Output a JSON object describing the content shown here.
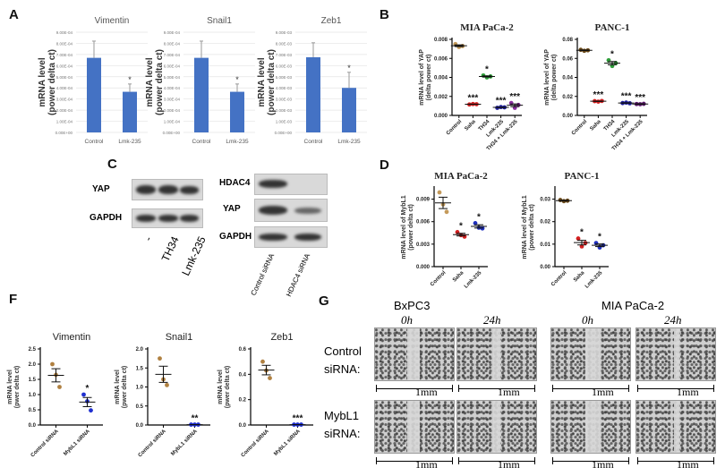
{
  "panels": {
    "A": "A",
    "B": "B",
    "C": "C",
    "D": "D",
    "F": "F",
    "G": "G"
  },
  "chart_data": [
    {
      "id": "A-vimentin",
      "type": "bar",
      "title": "Vimentin",
      "ylabel": [
        "mRNA level",
        "(power delta ct)"
      ],
      "categories": [
        "Control",
        "Lmk-235"
      ],
      "values": [
        0.00067,
        0.000365
      ],
      "errors": [
        0.00015,
        7e-05
      ],
      "annotations": [
        "",
        "*"
      ],
      "ylim": [
        0,
        0.0009
      ],
      "ytick_values": [
        0,
        0.0001,
        0.0002,
        0.0003,
        0.0004,
        0.0005,
        0.0006,
        0.0007,
        0.0008,
        0.0009
      ],
      "yticks": [
        "0.00E+00",
        "1.00E-04",
        "2.00E-04",
        "3.00E-04",
        "4.00E-04",
        "5.00E-04",
        "6.00E-04",
        "7.00E-04",
        "8.00E-04",
        "9.00E-04"
      ],
      "grid": true,
      "color": "#4472c4"
    },
    {
      "id": "A-snail1",
      "type": "bar",
      "title": "Snail1",
      "ylabel": [
        "mRNA level",
        "(power delta ct)"
      ],
      "categories": [
        "Control",
        "Lmk-235"
      ],
      "values": [
        0.00067,
        0.000365
      ],
      "errors": [
        0.00015,
        7e-05
      ],
      "annotations": [
        "",
        "*"
      ],
      "ylim": [
        0,
        0.0009
      ],
      "ytick_values": [
        0,
        0.0001,
        0.0002,
        0.0003,
        0.0004,
        0.0005,
        0.0006,
        0.0007,
        0.0008,
        0.0009
      ],
      "yticks": [
        "0.00E+00",
        "1.00E-04",
        "2.00E-04",
        "3.00E-04",
        "4.00E-04",
        "5.00E-04",
        "6.00E-04",
        "7.00E-04",
        "8.00E-04",
        "9.00E-04"
      ],
      "grid": true,
      "color": "#4472c4"
    },
    {
      "id": "A-zeb1",
      "type": "bar",
      "title": "Zeb1",
      "ylabel": [
        "mRNA level",
        "(power delta ct)"
      ],
      "categories": [
        "Control",
        "Lmk-235"
      ],
      "values": [
        0.00675,
        0.004
      ],
      "errors": [
        0.0013,
        0.0014
      ],
      "annotations": [
        "",
        "*"
      ],
      "ylim": [
        0,
        0.009
      ],
      "ytick_values": [
        0,
        0.001,
        0.002,
        0.003,
        0.004,
        0.005,
        0.006,
        0.007,
        0.008,
        0.009
      ],
      "yticks": [
        "0.00E+00",
        "1.00E-03",
        "2.00E-03",
        "3.00E-03",
        "4.00E-03",
        "5.00E-03",
        "6.00E-03",
        "7.00E-03",
        "8.00E-03",
        "9.00E-03"
      ],
      "grid": true,
      "color": "#4472c4"
    },
    {
      "id": "B-mia",
      "type": "scatter",
      "title": "MIA PaCa-2",
      "ylabel": [
        "mRNA level of YAP",
        "(delta power ct)"
      ],
      "categories": [
        "Control",
        "Saha",
        "TH34",
        "Lmk-235",
        "TH34 + Lmk-235"
      ],
      "points": [
        [
          0.0075,
          0.0072,
          0.0073
        ],
        [
          0.00115,
          0.0012,
          0.00118
        ],
        [
          0.0042,
          0.004,
          0.0041
        ],
        [
          0.0008,
          0.00088,
          0.00085
        ],
        [
          0.0013,
          0.0008,
          0.0011
        ]
      ],
      "colors": [
        "#c49a5a",
        "#d42020",
        "#2f9e3a",
        "#1e1e9a",
        "#8a2ea0"
      ],
      "annotations": [
        "",
        "***",
        "*",
        "***",
        "***"
      ],
      "ylim": [
        0,
        0.008
      ],
      "ytick_values": [
        0,
        0.002,
        0.004,
        0.006,
        0.008
      ],
      "yticks": [
        "0.000",
        "0.002",
        "0.004",
        "0.006",
        "0.008"
      ]
    },
    {
      "id": "B-panc",
      "type": "scatter",
      "title": "PANC-1",
      "ylabel": [
        "mRNA level of YAP",
        "(delta power ct)"
      ],
      "categories": [
        "Control",
        "Saha",
        "TH34",
        "Lmk-235",
        "TH34 + Lmk-235"
      ],
      "points": [
        [
          0.069,
          0.068,
          0.0685
        ],
        [
          0.015,
          0.0145,
          0.0152
        ],
        [
          0.058,
          0.052,
          0.055
        ],
        [
          0.013,
          0.0135,
          0.0128
        ],
        [
          0.012,
          0.0118,
          0.0122
        ]
      ],
      "colors": [
        "#6b4a1a",
        "#d42020",
        "#2f9e3a",
        "#1e1e9a",
        "#5a1a6a"
      ],
      "annotations": [
        "",
        "***",
        "*",
        "***",
        "***"
      ],
      "ylim": [
        0,
        0.08
      ],
      "ytick_values": [
        0,
        0.02,
        0.04,
        0.06,
        0.08
      ],
      "yticks": [
        "0.00",
        "0.02",
        "0.04",
        "0.06",
        "0.08"
      ]
    },
    {
      "id": "D-mia",
      "type": "scatter",
      "title": "MIA PaCa-2",
      "ylabel": [
        "mRNA level of MybL1",
        "(power delta ct)"
      ],
      "categories": [
        "Control",
        "Saha",
        "Lmk-235"
      ],
      "points": [
        [
          0.0099,
          0.0083,
          0.0073
        ],
        [
          0.0046,
          0.0042,
          0.004
        ],
        [
          0.0058,
          0.0052,
          0.0051
        ]
      ],
      "colors": [
        "#c49a5a",
        "#d42020",
        "#2030c0"
      ],
      "annotations": [
        "",
        "*",
        "*"
      ],
      "ylim": [
        0,
        0.0105
      ],
      "ytick_values": [
        0,
        0.003,
        0.006,
        0.009
      ],
      "yticks": [
        "0.000",
        "0.003",
        "0.006",
        "0.009"
      ]
    },
    {
      "id": "D-panc",
      "type": "scatter",
      "title": "PANC-1",
      "ylabel": [
        "mRNA level of MybL1",
        "(power delta ct)"
      ],
      "categories": [
        "Control",
        "Saha",
        "Lmk-235"
      ],
      "points": [
        [
          0.0296,
          0.0291,
          0.0293
        ],
        [
          0.0125,
          0.009,
          0.0105
        ],
        [
          0.0105,
          0.0085,
          0.0095
        ]
      ],
      "colors": [
        "#6b4a1a",
        "#d42020",
        "#2030c0"
      ],
      "annotations": [
        "",
        "*",
        "*"
      ],
      "ylim": [
        0,
        0.035
      ],
      "ytick_values": [
        0,
        0.01,
        0.02,
        0.03
      ],
      "yticks": [
        "0.00",
        "0.01",
        "0.02",
        "0.03"
      ]
    },
    {
      "id": "F-vimentin",
      "type": "scatter",
      "title": "Vimentin",
      "ylabel": [
        "mRNA level",
        "(pwer delta ct)"
      ],
      "categories": [
        "Control siRNA",
        "MybL1 siRNA"
      ],
      "points": [
        [
          2.0,
          1.65,
          1.25
        ],
        [
          1.0,
          0.78,
          0.48
        ]
      ],
      "colors": [
        "#b08040",
        "#1f2fd0"
      ],
      "annotations": [
        "",
        "*"
      ],
      "ylim": [
        0,
        2.5
      ],
      "ytick_values": [
        0,
        0.5,
        1,
        1.5,
        2,
        2.5
      ],
      "yticks": [
        "0.0",
        "0.5",
        "1.0",
        "1.5",
        "2.0",
        "2.5"
      ]
    },
    {
      "id": "F-snail1",
      "type": "scatter",
      "title": "Snail1",
      "ylabel": [
        "mRNA level",
        "(pwer delta ct)"
      ],
      "categories": [
        "Control siRNA",
        "MybL1 siRNA"
      ],
      "points": [
        [
          1.75,
          1.2,
          1.05
        ],
        [
          0.01,
          0.01,
          0.01
        ]
      ],
      "colors": [
        "#b08040",
        "#1f2fd0"
      ],
      "annotations": [
        "",
        "**"
      ],
      "ylim": [
        0,
        2.0
      ],
      "ytick_values": [
        0,
        0.5,
        1,
        1.5,
        2
      ],
      "yticks": [
        "0.0",
        "0.5",
        "1.0",
        "1.5",
        "2.0"
      ]
    },
    {
      "id": "F-zeb1",
      "type": "scatter",
      "title": "Zeb1",
      "ylabel": [
        "mRNA level",
        "(pwer delta ct)"
      ],
      "categories": [
        "Control siRNA",
        "MybL1 siRNA"
      ],
      "points": [
        [
          0.5,
          0.43,
          0.37
        ],
        [
          0.003,
          0.003,
          0.003
        ]
      ],
      "colors": [
        "#b08040",
        "#1f2fd0"
      ],
      "annotations": [
        "",
        "***"
      ],
      "ylim": [
        0,
        0.6
      ],
      "ytick_values": [
        0,
        0.2,
        0.4,
        0.6
      ],
      "yticks": [
        "0.0",
        "0.2",
        "0.4",
        "0.6"
      ]
    }
  ],
  "C": {
    "left_rows": [
      "YAP",
      "GAPDH"
    ],
    "left_lanes": [
      "-",
      "TH34",
      "Lmk-235"
    ],
    "right_rows": [
      "HDAC4",
      "YAP",
      "GAPDH"
    ],
    "right_lanes": [
      "Control siRNA",
      "HDAC4 siRNA"
    ]
  },
  "G": {
    "groups": [
      "BxPC3",
      "MIA PaCa-2"
    ],
    "times": [
      "0h",
      "24h",
      "0h",
      "24h"
    ],
    "rows": [
      "Control siRNA:",
      "MybL1 siRNA:"
    ],
    "scale": "1mm"
  }
}
